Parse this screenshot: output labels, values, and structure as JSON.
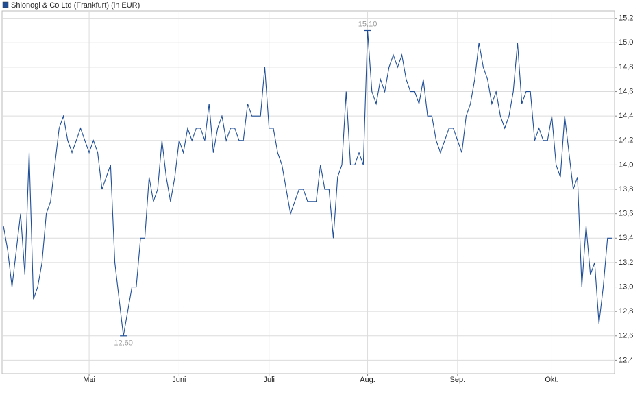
{
  "chart_data": {
    "type": "line",
    "series": [
      {
        "name": "Shionogi & Co Ltd (Frankfurt) (in EUR)",
        "color": "#1f4e96",
        "values": [
          13.5,
          13.3,
          13.0,
          13.3,
          13.6,
          13.1,
          14.1,
          12.9,
          13.0,
          13.2,
          13.6,
          13.7,
          14.0,
          14.3,
          14.4,
          14.2,
          14.1,
          14.2,
          14.3,
          14.2,
          14.1,
          14.2,
          14.1,
          13.8,
          13.9,
          14.0,
          13.2,
          12.9,
          12.6,
          12.8,
          13.0,
          13.0,
          13.4,
          13.4,
          13.9,
          13.7,
          13.8,
          14.2,
          13.9,
          13.7,
          13.9,
          14.2,
          14.1,
          14.3,
          14.2,
          14.3,
          14.3,
          14.2,
          14.5,
          14.1,
          14.3,
          14.4,
          14.2,
          14.3,
          14.3,
          14.2,
          14.2,
          14.5,
          14.4,
          14.4,
          14.4,
          14.8,
          14.3,
          14.3,
          14.1,
          14.0,
          13.8,
          13.6,
          13.7,
          13.8,
          13.8,
          13.7,
          13.7,
          13.7,
          14.0,
          13.8,
          13.8,
          13.4,
          13.9,
          14.0,
          14.6,
          14.0,
          14.0,
          14.1,
          14.0,
          15.1,
          14.6,
          14.5,
          14.7,
          14.6,
          14.8,
          14.9,
          14.8,
          14.9,
          14.7,
          14.6,
          14.6,
          14.5,
          14.7,
          14.4,
          14.4,
          14.2,
          14.1,
          14.2,
          14.3,
          14.3,
          14.2,
          14.1,
          14.4,
          14.5,
          14.7,
          15.0,
          14.8,
          14.7,
          14.5,
          14.6,
          14.4,
          14.3,
          14.4,
          14.6,
          15.0,
          14.5,
          14.6,
          14.6,
          14.2,
          14.3,
          14.2,
          14.2,
          14.4,
          14.0,
          13.9,
          14.4,
          14.1,
          13.8,
          13.9,
          13.0,
          13.5,
          13.1,
          13.2,
          12.7,
          13.0,
          13.4,
          13.4
        ],
        "value_labels": [
          null,
          null,
          null,
          null,
          null,
          null,
          null,
          null,
          null,
          null,
          null,
          null,
          null,
          null,
          null,
          null,
          null,
          null,
          null,
          null,
          null,
          null,
          null,
          null,
          null,
          null,
          null,
          null,
          "12,60",
          null,
          null,
          null,
          null,
          null,
          null,
          null,
          null,
          null,
          null,
          null,
          null,
          null,
          null,
          null,
          null,
          null,
          null,
          null,
          null,
          null,
          null,
          null,
          null,
          null,
          null,
          null,
          null,
          null,
          null,
          null,
          null,
          null,
          null,
          null,
          null,
          null,
          null,
          null,
          null,
          null,
          null,
          null,
          null,
          null,
          null,
          null,
          null,
          null,
          null,
          null,
          null,
          null,
          null,
          null,
          null,
          "15,10",
          null,
          null,
          null,
          null,
          null,
          null,
          null,
          null,
          null,
          null,
          null,
          null,
          null,
          null,
          null,
          null,
          null,
          null,
          null,
          null,
          null,
          null,
          null,
          null,
          null,
          null,
          null,
          null,
          null,
          null,
          null,
          null,
          null,
          null,
          null,
          null,
          null,
          null,
          null,
          null,
          null,
          null,
          null,
          null,
          null,
          null,
          null,
          null,
          null,
          null,
          null,
          null,
          null,
          null,
          null,
          null,
          null
        ]
      }
    ],
    "xlim": [
      0,
      142
    ],
    "xticks": [
      {
        "value": 20,
        "label": "Mai"
      },
      {
        "value": 41,
        "label": "Juni"
      },
      {
        "value": 62,
        "label": "Juli"
      },
      {
        "value": 85,
        "label": "Aug."
      },
      {
        "value": 106,
        "label": "Sep."
      },
      {
        "value": 128,
        "label": "Okt."
      }
    ],
    "ylim": [
      12.29,
      15.26
    ],
    "yticks": [
      {
        "value": 12.4,
        "label": "12,4"
      },
      {
        "value": 12.6,
        "label": "12,6"
      },
      {
        "value": 12.8,
        "label": "12,8"
      },
      {
        "value": 13.0,
        "label": "13,0"
      },
      {
        "value": 13.2,
        "label": "13,2"
      },
      {
        "value": 13.4,
        "label": "13,4"
      },
      {
        "value": 13.6,
        "label": "13,6"
      },
      {
        "value": 13.8,
        "label": "13,8"
      },
      {
        "value": 14.0,
        "label": "14,0"
      },
      {
        "value": 14.2,
        "label": "14,2"
      },
      {
        "value": 14.4,
        "label": "14,4"
      },
      {
        "value": 14.6,
        "label": "14,6"
      },
      {
        "value": 14.8,
        "label": "14,8"
      },
      {
        "value": 15.0,
        "label": "15,0"
      },
      {
        "value": 15.2,
        "label": "15,2"
      }
    ],
    "grid": true
  }
}
